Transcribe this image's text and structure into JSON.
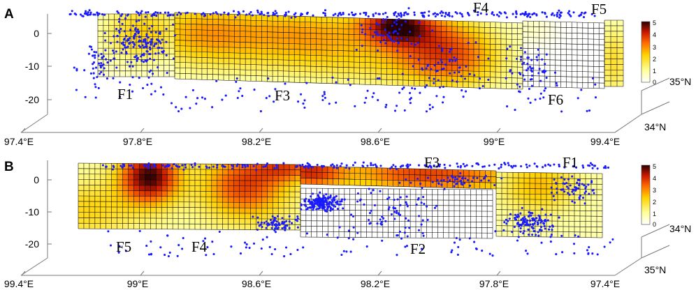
{
  "chart_data": [
    {
      "panel": "A",
      "type": "heatmap",
      "description_axes": {
        "depth_ticks": [
          0,
          -10,
          -20
        ],
        "lon_ticks": [
          "97.4°E",
          "97.8°E",
          "98.2°E",
          "98.6°E",
          "99°E",
          "99.4°E"
        ],
        "lat_ticks": [
          "35°N",
          "34°N"
        ]
      },
      "fault_labels": [
        "F1",
        "F3",
        "F4",
        "F5",
        "F6"
      ],
      "colorbar": {
        "min": 0,
        "max": 5,
        "ticks": [
          0,
          1,
          2,
          3,
          4,
          5
        ]
      },
      "slip_peaks": [
        {
          "along_km": 0.08,
          "depth_km": -5,
          "slip": 2.2
        },
        {
          "along_km": 0.22,
          "depth_km": -4,
          "slip": 2.8
        },
        {
          "along_km": 0.42,
          "depth_km": -3,
          "slip": 3.0
        },
        {
          "along_km": 0.66,
          "depth_km": -1,
          "slip": 4.8
        },
        {
          "along_km": 0.7,
          "depth_km": -6,
          "slip": 3.6
        }
      ]
    },
    {
      "panel": "B",
      "type": "heatmap",
      "description_axes": {
        "depth_ticks": [
          0,
          -10,
          -20
        ],
        "lon_ticks": [
          "99.4°E",
          "99°E",
          "98.6°E",
          "98.2°E",
          "97.8°E",
          "97.4°E"
        ],
        "lat_ticks": [
          "34°N",
          "35°N"
        ]
      },
      "fault_labels": [
        "F5",
        "F4",
        "F2",
        "F3",
        "F1"
      ],
      "colorbar": {
        "min": 0,
        "max": 5,
        "ticks": [
          0,
          1,
          2,
          3,
          4,
          5
        ]
      },
      "slip_peaks": [
        {
          "along_km": 0.12,
          "depth_km": -2,
          "slip": 4.9
        },
        {
          "along_km": 0.36,
          "depth_km": -4,
          "slip": 3.8
        },
        {
          "along_km": 0.5,
          "depth_km": -1,
          "slip": 4.2
        },
        {
          "along_km": 0.8,
          "depth_km": -1,
          "slip": 2.6
        }
      ]
    }
  ],
  "figure": {
    "panel_a": {
      "letter": "A",
      "depth_labels": [
        "0",
        "-10",
        "-20"
      ],
      "lon_labels": [
        "97.4°E",
        "97.8°E",
        "98.2°E",
        "98.6°E",
        "99°E",
        "99.4°E"
      ],
      "lat_labels": [
        "35°N",
        "34°N"
      ],
      "fault_labels": [
        "F1",
        "F3",
        "F4",
        "F5",
        "F6"
      ],
      "colorbar_labels": [
        "5",
        "4",
        "3",
        "2",
        "1",
        "0"
      ]
    },
    "panel_b": {
      "letter": "B",
      "depth_labels": [
        "0",
        "-10",
        "-20"
      ],
      "lon_labels": [
        "99.4°E",
        "99°E",
        "98.6°E",
        "98.2°E",
        "97.8°E",
        "97.4°E"
      ],
      "lat_labels": [
        "34°N",
        "35°N"
      ],
      "fault_labels": [
        "F5",
        "F4",
        "F2",
        "F3",
        "F1"
      ],
      "colorbar_labels": [
        "5",
        "4",
        "3",
        "2",
        "1",
        "0"
      ]
    },
    "colors": {
      "grid": "#000000",
      "events": "#1a1aff",
      "axis": "#7a7a7a",
      "cmap": [
        "#ffffff",
        "#ffff99",
        "#ffd200",
        "#ff6a00",
        "#cc1a00",
        "#2a0000"
      ]
    }
  }
}
